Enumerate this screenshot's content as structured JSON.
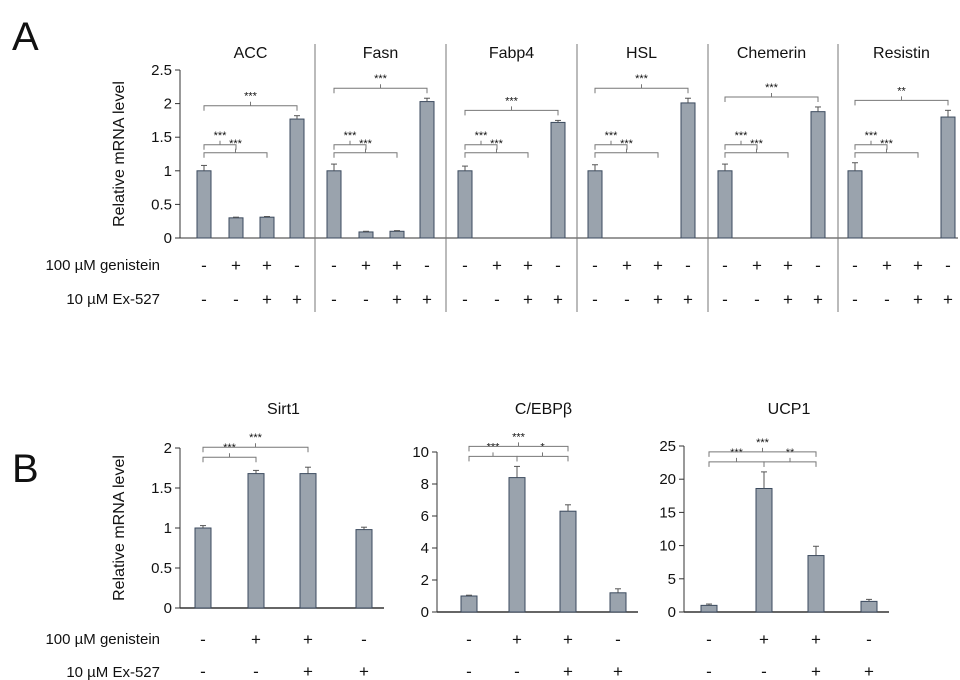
{
  "panel_labels": {
    "a": "A",
    "b": "B"
  },
  "treatments": {
    "genistein_label": "100 µM genistein",
    "ex527_label": "10 µM Ex-527",
    "genistein": [
      "-",
      "+",
      "+",
      "-"
    ],
    "ex527": [
      "-",
      "-",
      "+",
      "+"
    ]
  },
  "colors": {
    "bar": "#9aa3ad",
    "bar_edge": "#3b4a5e",
    "axis": "#333333",
    "separator": "#777777"
  },
  "chart_data": [
    {
      "type": "bar",
      "panel": "A",
      "ylabel": "Relative mRNA level",
      "ylim": [
        0,
        2.5
      ],
      "yticks": [
        "0",
        "0.5",
        "1",
        "1.5",
        "2",
        "2.5"
      ],
      "groups": [
        {
          "name": "ACC",
          "values": [
            1,
            0.3,
            0.31,
            1.77
          ],
          "errors": [
            0.08,
            0.01,
            0.01,
            0.05
          ],
          "sig": [
            {
              "from": 0,
              "to": 1,
              "label": "***"
            },
            {
              "from": 0,
              "to": 2,
              "label": "***"
            },
            {
              "from": 0,
              "to": 3,
              "label": "***"
            }
          ]
        },
        {
          "name": "Fasn",
          "values": [
            1,
            0.09,
            0.1,
            2.03
          ],
          "errors": [
            0.1,
            0.01,
            0.01,
            0.05
          ],
          "sig": [
            {
              "from": 0,
              "to": 1,
              "label": "***"
            },
            {
              "from": 0,
              "to": 2,
              "label": "***"
            },
            {
              "from": 0,
              "to": 3,
              "label": "***"
            }
          ]
        },
        {
          "name": "Fabp4",
          "values": [
            1,
            0,
            0,
            1.72
          ],
          "errors": [
            0.07,
            0,
            0,
            0.03
          ],
          "sig": [
            {
              "from": 0,
              "to": 1,
              "label": "***"
            },
            {
              "from": 0,
              "to": 2,
              "label": "***"
            },
            {
              "from": 0,
              "to": 3,
              "label": "***"
            }
          ]
        },
        {
          "name": "HSL",
          "values": [
            1,
            0,
            0,
            2.01
          ],
          "errors": [
            0.09,
            0,
            0,
            0.07
          ],
          "sig": [
            {
              "from": 0,
              "to": 1,
              "label": "***"
            },
            {
              "from": 0,
              "to": 2,
              "label": "***"
            },
            {
              "from": 0,
              "to": 3,
              "label": "***"
            }
          ]
        },
        {
          "name": "Chemerin",
          "values": [
            1,
            0,
            0,
            1.88
          ],
          "errors": [
            0.1,
            0,
            0,
            0.07
          ],
          "sig": [
            {
              "from": 0,
              "to": 1,
              "label": "***"
            },
            {
              "from": 0,
              "to": 2,
              "label": "***"
            },
            {
              "from": 0,
              "to": 3,
              "label": "***"
            }
          ]
        },
        {
          "name": "Resistin",
          "values": [
            1,
            0,
            0,
            1.8
          ],
          "errors": [
            0.12,
            0,
            0,
            0.1
          ],
          "sig": [
            {
              "from": 0,
              "to": 1,
              "label": "***"
            },
            {
              "from": 0,
              "to": 2,
              "label": "***"
            },
            {
              "from": 0,
              "to": 3,
              "label": "**"
            }
          ]
        }
      ]
    },
    {
      "type": "bar",
      "panel": "B",
      "title": "Sirt1",
      "ylabel": "Relative mRNA level",
      "ylim": [
        0,
        2
      ],
      "yticks": [
        "0",
        "0.5",
        "1",
        "1.5",
        "2"
      ],
      "values": [
        1,
        1.68,
        1.68,
        0.98
      ],
      "errors": [
        0.03,
        0.04,
        0.08,
        0.03
      ],
      "sig": [
        {
          "from": 0,
          "to": 1,
          "label": "***"
        },
        {
          "from": 0,
          "to": 2,
          "label": "***"
        }
      ]
    },
    {
      "type": "bar",
      "panel": "B",
      "title": "C/EBPβ",
      "ylabel": "",
      "ylim": [
        0,
        10
      ],
      "yticks": [
        "0",
        "2",
        "4",
        "6",
        "8",
        "10"
      ],
      "values": [
        1,
        8.4,
        6.3,
        1.2
      ],
      "errors": [
        0.05,
        0.7,
        0.4,
        0.25
      ],
      "sig": [
        {
          "from": 0,
          "to": 1,
          "label": "***"
        },
        {
          "from": 1,
          "to": 2,
          "label": "*"
        },
        {
          "from": 0,
          "to": 2,
          "label": "***"
        }
      ]
    },
    {
      "type": "bar",
      "panel": "B",
      "title": "UCP1",
      "ylabel": "",
      "ylim": [
        0,
        25
      ],
      "yticks": [
        "0",
        "5",
        "10",
        "15",
        "20",
        "25"
      ],
      "values": [
        1,
        18.6,
        8.5,
        1.6
      ],
      "errors": [
        0.2,
        2.5,
        1.4,
        0.3
      ],
      "sig": [
        {
          "from": 0,
          "to": 1,
          "label": "***"
        },
        {
          "from": 1,
          "to": 2,
          "label": "**"
        },
        {
          "from": 0,
          "to": 2,
          "label": "***"
        }
      ]
    }
  ]
}
